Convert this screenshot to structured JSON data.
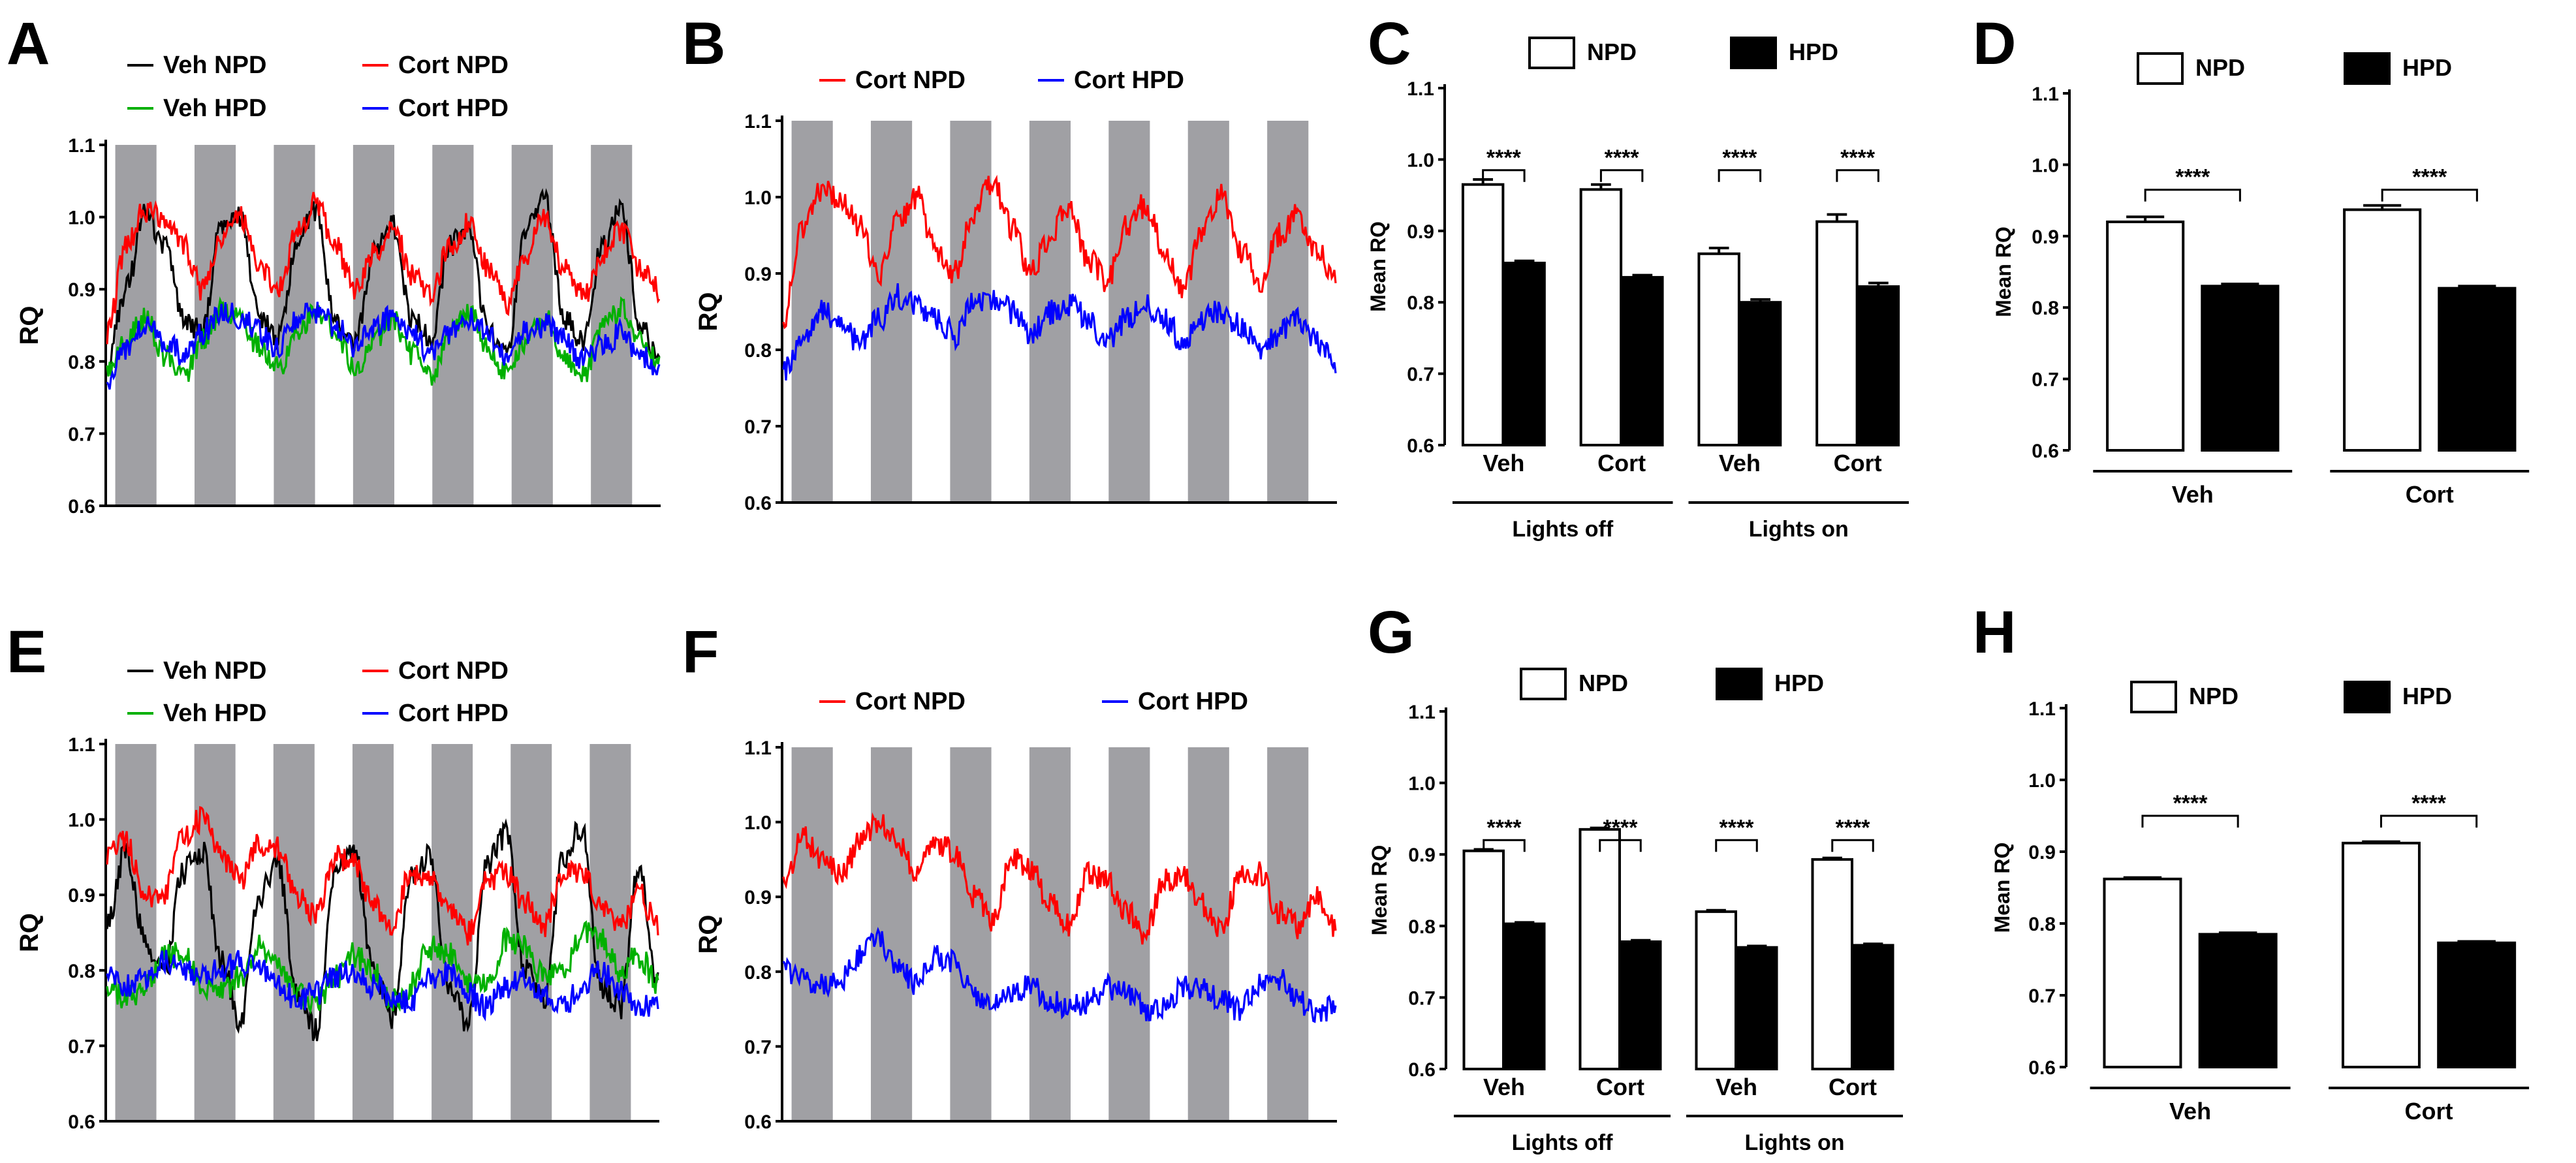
{
  "panel_labels": [
    "A",
    "B",
    "C",
    "D",
    "E",
    "F",
    "G",
    "H"
  ],
  "chart_data": [
    {
      "panel": "A",
      "type": "line",
      "xlabel": "",
      "ylabel": "RQ",
      "ylim": [
        0.6,
        1.1
      ],
      "yticks": [
        "0.6",
        "0.7",
        "0.8",
        "0.9",
        "1.0",
        "1.1"
      ],
      "dark_phases": 7,
      "legend": [
        "Veh NPD",
        "Cort NPD",
        "Veh HPD",
        "Cort HPD"
      ],
      "series": [
        {
          "name": "Veh NPD",
          "color": "#000000",
          "values": [
            0.8,
            0.9,
            1.01,
            0.96,
            0.86,
            0.84,
            0.99,
            1.0,
            0.86,
            0.83,
            0.97,
            1.01,
            0.85,
            0.82,
            0.95,
            0.99,
            0.86,
            0.83,
            0.96,
            0.99,
            0.84,
            0.82,
            0.98,
            1.02,
            0.86,
            0.83,
            0.96,
            1.01,
            0.85,
            0.8
          ]
        },
        {
          "name": "Cort NPD",
          "color": "#ff0000",
          "values": [
            0.84,
            0.96,
            1.01,
            1.0,
            0.96,
            0.9,
            0.97,
            1.0,
            0.93,
            0.9,
            0.98,
            1.02,
            0.96,
            0.9,
            0.95,
            0.99,
            0.92,
            0.89,
            0.96,
            0.99,
            0.93,
            0.88,
            0.95,
            1.0,
            0.93,
            0.89,
            0.95,
            0.98,
            0.93,
            0.9
          ]
        },
        {
          "name": "Veh HPD",
          "color": "#00b000",
          "values": [
            0.78,
            0.83,
            0.86,
            0.81,
            0.78,
            0.83,
            0.87,
            0.86,
            0.82,
            0.79,
            0.84,
            0.87,
            0.84,
            0.79,
            0.83,
            0.86,
            0.81,
            0.78,
            0.84,
            0.87,
            0.82,
            0.78,
            0.83,
            0.86,
            0.81,
            0.78,
            0.85,
            0.87,
            0.83,
            0.8
          ]
        },
        {
          "name": "Cort HPD",
          "color": "#0000ff",
          "values": [
            0.77,
            0.82,
            0.85,
            0.83,
            0.81,
            0.84,
            0.87,
            0.86,
            0.84,
            0.82,
            0.86,
            0.87,
            0.85,
            0.82,
            0.85,
            0.86,
            0.84,
            0.81,
            0.84,
            0.86,
            0.84,
            0.81,
            0.84,
            0.85,
            0.83,
            0.8,
            0.82,
            0.84,
            0.81,
            0.78
          ]
        }
      ]
    },
    {
      "panel": "B",
      "type": "line",
      "xlabel": "",
      "ylabel": "RQ",
      "ylim": [
        0.6,
        1.1
      ],
      "yticks": [
        "0.6",
        "0.7",
        "0.8",
        "0.9",
        "1.0",
        "1.1"
      ],
      "dark_phases": 7,
      "legend": [
        "Cort NPD",
        "Cort HPD"
      ],
      "series": [
        {
          "name": "Cort NPD",
          "color": "#ff0000",
          "values": [
            0.84,
            0.96,
            1.01,
            1.0,
            0.96,
            0.9,
            0.97,
            1.0,
            0.93,
            0.9,
            0.98,
            1.02,
            0.96,
            0.9,
            0.95,
            0.99,
            0.92,
            0.89,
            0.96,
            0.99,
            0.93,
            0.88,
            0.95,
            1.0,
            0.93,
            0.89,
            0.95,
            0.98,
            0.93,
            0.9
          ]
        },
        {
          "name": "Cort HPD",
          "color": "#0000ff",
          "values": [
            0.77,
            0.82,
            0.85,
            0.83,
            0.81,
            0.84,
            0.87,
            0.86,
            0.84,
            0.82,
            0.86,
            0.87,
            0.85,
            0.82,
            0.85,
            0.86,
            0.84,
            0.81,
            0.84,
            0.86,
            0.84,
            0.81,
            0.84,
            0.85,
            0.83,
            0.8,
            0.82,
            0.84,
            0.81,
            0.78
          ]
        }
      ]
    },
    {
      "panel": "C",
      "type": "bar",
      "ylabel": "Mean RQ",
      "ylim": [
        0.6,
        1.1
      ],
      "yticks": [
        "0.6",
        "0.7",
        "0.8",
        "0.9",
        "1.0",
        "1.1"
      ],
      "legend": [
        "NPD",
        "HPD"
      ],
      "categories": [
        "Veh",
        "Cort",
        "Veh",
        "Cort"
      ],
      "groups": [
        "Lights off",
        "Lights on"
      ],
      "series": [
        {
          "name": "NPD",
          "values": [
            0.965,
            0.958,
            0.868,
            0.913
          ],
          "errors": [
            0.007,
            0.007,
            0.008,
            0.01
          ]
        },
        {
          "name": "HPD",
          "values": [
            0.855,
            0.835,
            0.8,
            0.822
          ],
          "errors": [
            0.003,
            0.003,
            0.004,
            0.005
          ]
        }
      ],
      "significance": [
        "****",
        "****",
        "****",
        "****"
      ]
    },
    {
      "panel": "D",
      "type": "bar",
      "ylabel": "Mean RQ",
      "ylim": [
        0.6,
        1.1
      ],
      "yticks": [
        "0.6",
        "0.7",
        "0.8",
        "0.9",
        "1.0",
        "1.1"
      ],
      "legend": [
        "NPD",
        "HPD"
      ],
      "categories": [
        "Veh",
        "Cort"
      ],
      "series": [
        {
          "name": "NPD",
          "values": [
            0.92,
            0.937
          ],
          "errors": [
            0.007,
            0.006
          ]
        },
        {
          "name": "HPD",
          "values": [
            0.83,
            0.827
          ],
          "errors": [
            0.003,
            0.003
          ]
        }
      ],
      "significance": [
        "****",
        "****"
      ]
    },
    {
      "panel": "E",
      "type": "line",
      "xlabel": "",
      "ylabel": "RQ",
      "ylim": [
        0.6,
        1.1
      ],
      "yticks": [
        "0.6",
        "0.7",
        "0.8",
        "0.9",
        "1.0",
        "1.1"
      ],
      "dark_phases": 7,
      "legend": [
        "Veh NPD",
        "Cort NPD",
        "Veh HPD",
        "Cort HPD"
      ],
      "series": [
        {
          "name": "Veh NPD",
          "color": "#000000",
          "values": [
            0.86,
            0.96,
            0.84,
            0.79,
            0.93,
            0.96,
            0.82,
            0.73,
            0.9,
            0.94,
            0.77,
            0.72,
            0.93,
            0.96,
            0.8,
            0.74,
            0.92,
            0.95,
            0.78,
            0.73,
            0.94,
            0.98,
            0.8,
            0.76,
            0.95,
            0.99,
            0.78,
            0.75,
            0.94,
            0.78
          ]
        },
        {
          "name": "Cort NPD",
          "color": "#ff0000",
          "values": [
            0.95,
            0.97,
            0.9,
            0.9,
            0.98,
            1.0,
            0.95,
            0.92,
            0.97,
            0.96,
            0.9,
            0.87,
            0.95,
            0.94,
            0.89,
            0.86,
            0.93,
            0.92,
            0.88,
            0.85,
            0.92,
            0.93,
            0.89,
            0.86,
            0.93,
            0.93,
            0.88,
            0.86,
            0.9,
            0.86
          ]
        },
        {
          "name": "Veh HPD",
          "color": "#00b000",
          "values": [
            0.78,
            0.76,
            0.78,
            0.82,
            0.82,
            0.78,
            0.77,
            0.79,
            0.83,
            0.81,
            0.77,
            0.76,
            0.79,
            0.82,
            0.8,
            0.76,
            0.78,
            0.83,
            0.82,
            0.78,
            0.78,
            0.84,
            0.83,
            0.79,
            0.8,
            0.85,
            0.84,
            0.8,
            0.82,
            0.78
          ]
        },
        {
          "name": "Cort HPD",
          "color": "#0000ff",
          "values": [
            0.8,
            0.78,
            0.79,
            0.81,
            0.8,
            0.79,
            0.8,
            0.81,
            0.8,
            0.78,
            0.76,
            0.77,
            0.79,
            0.8,
            0.78,
            0.76,
            0.76,
            0.79,
            0.8,
            0.77,
            0.75,
            0.78,
            0.79,
            0.77,
            0.75,
            0.78,
            0.8,
            0.77,
            0.75,
            0.75
          ]
        }
      ]
    },
    {
      "panel": "F",
      "type": "line",
      "xlabel": "",
      "ylabel": "RQ",
      "ylim": [
        0.6,
        1.1
      ],
      "yticks": [
        "0.6",
        "0.7",
        "0.8",
        "0.9",
        "1.0",
        "1.1"
      ],
      "dark_phases": 7,
      "legend": [
        "Cort NPD",
        "Cort HPD"
      ],
      "series": [
        {
          "name": "Cort NPD",
          "color": "#ff0000",
          "values": [
            0.92,
            0.98,
            0.95,
            0.93,
            0.97,
            1.0,
            0.97,
            0.93,
            0.97,
            0.96,
            0.9,
            0.87,
            0.95,
            0.94,
            0.89,
            0.86,
            0.93,
            0.92,
            0.88,
            0.85,
            0.92,
            0.93,
            0.89,
            0.86,
            0.93,
            0.93,
            0.88,
            0.86,
            0.9,
            0.86
          ]
        },
        {
          "name": "Cort HPD",
          "color": "#0000ff",
          "values": [
            0.8,
            0.79,
            0.78,
            0.79,
            0.82,
            0.84,
            0.81,
            0.78,
            0.82,
            0.81,
            0.77,
            0.76,
            0.77,
            0.78,
            0.76,
            0.75,
            0.76,
            0.78,
            0.77,
            0.75,
            0.75,
            0.78,
            0.78,
            0.76,
            0.75,
            0.78,
            0.79,
            0.76,
            0.75,
            0.75
          ]
        }
      ]
    },
    {
      "panel": "G",
      "type": "bar",
      "ylabel": "Mean RQ",
      "ylim": [
        0.6,
        1.1
      ],
      "yticks": [
        "0.6",
        "0.7",
        "0.8",
        "0.9",
        "1.0",
        "1.1"
      ],
      "legend": [
        "NPD",
        "HPD"
      ],
      "categories": [
        "Veh",
        "Cort",
        "Veh",
        "Cort"
      ],
      "groups": [
        "Lights off",
        "Lights on"
      ],
      "series": [
        {
          "name": "NPD",
          "values": [
            0.905,
            0.935,
            0.82,
            0.893
          ],
          "errors": [
            0.002,
            0.002,
            0.002,
            0.002
          ]
        },
        {
          "name": "HPD",
          "values": [
            0.803,
            0.778,
            0.77,
            0.773
          ],
          "errors": [
            0.002,
            0.002,
            0.002,
            0.002
          ]
        }
      ],
      "significance": [
        "****",
        "****",
        "****",
        "****"
      ]
    },
    {
      "panel": "H",
      "type": "bar",
      "ylabel": "Mean RQ",
      "ylim": [
        0.6,
        1.1
      ],
      "yticks": [
        "0.6",
        "0.7",
        "0.8",
        "0.9",
        "1.0",
        "1.1"
      ],
      "legend": [
        "NPD",
        "HPD"
      ],
      "categories": [
        "Veh",
        "Cort"
      ],
      "series": [
        {
          "name": "NPD",
          "values": [
            0.862,
            0.912
          ],
          "errors": [
            0.002,
            0.002
          ]
        },
        {
          "name": "HPD",
          "values": [
            0.785,
            0.773
          ],
          "errors": [
            0.002,
            0.002
          ]
        }
      ],
      "significance": [
        "****",
        "****"
      ]
    }
  ]
}
